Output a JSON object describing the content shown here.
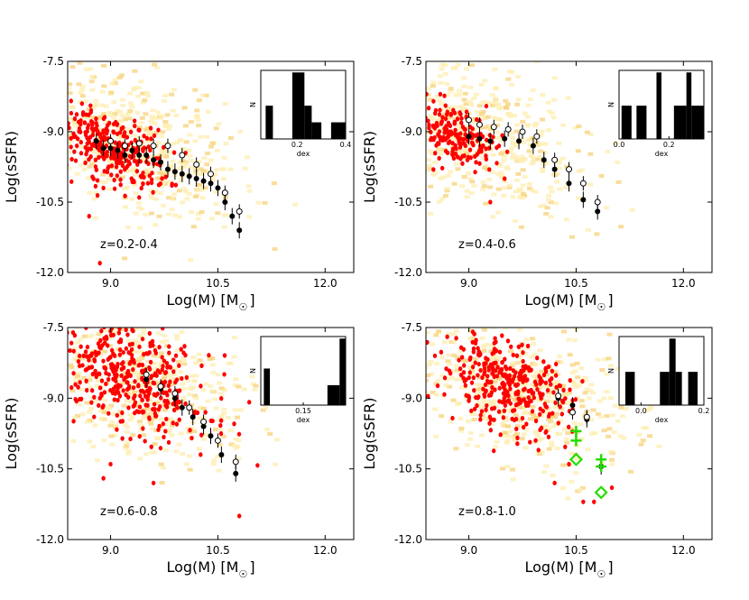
{
  "colors": {
    "density": "#fdeeb0",
    "density_dark": "#f7d27a",
    "points": "#ff0000",
    "binned": "#000000",
    "highlight": "#22dd00",
    "hist": "#000000"
  },
  "chart_data": [
    {
      "type": "scatter",
      "panel": "z=0.2-0.4",
      "annotation": "z=0.2-0.4",
      "xlabel": "Log(M) [M",
      "xlabel_sub": "☉",
      "xlabel_close": "]",
      "ylabel": "Log(sSFR)",
      "xlim": [
        8.4,
        12.4
      ],
      "ylim": [
        -12.0,
        -7.5
      ],
      "xticks": [
        9.0,
        10.5,
        12.0
      ],
      "xtick_labels": [
        "9.0",
        "10.5",
        "12.0"
      ],
      "yticks": [
        -7.5,
        -9.0,
        -10.5,
        -12.0
      ],
      "ytick_labels": [
        "-7.5",
        "-9.0",
        "-10.5",
        "-12.0"
      ],
      "density_center": {
        "x": 9.2,
        "y": -9.2
      },
      "red_clump": {
        "x": 9.0,
        "y": -9.35,
        "n": 300,
        "sx": 0.4,
        "sy": 0.35
      },
      "red_outliers": [
        [
          8.9,
          -10.2
        ],
        [
          8.7,
          -10.8
        ],
        [
          8.85,
          -11.8
        ],
        [
          9.4,
          -10.4
        ],
        [
          8.6,
          -8.4
        ]
      ],
      "binned_filled": {
        "x": [
          8.8,
          8.9,
          9.0,
          9.1,
          9.2,
          9.3,
          9.4,
          9.5,
          9.6,
          9.7,
          9.8,
          9.9,
          10.0,
          10.1,
          10.2,
          10.3,
          10.4,
          10.5,
          10.6,
          10.7,
          10.8
        ],
        "y": [
          -9.2,
          -9.35,
          -9.35,
          -9.4,
          -9.5,
          -9.4,
          -9.5,
          -9.5,
          -9.6,
          -9.65,
          -9.8,
          -9.85,
          -9.9,
          -9.95,
          -10.0,
          -10.05,
          -10.1,
          -10.2,
          -10.5,
          -10.8,
          -11.1
        ]
      },
      "binned_open": {
        "x": [
          9.0,
          9.2,
          9.4,
          9.6,
          9.8,
          10.0,
          10.2,
          10.4,
          10.6,
          10.8
        ],
        "y": [
          -9.2,
          -9.3,
          -9.25,
          -9.3,
          -9.3,
          -9.5,
          -9.7,
          -9.9,
          -10.3,
          -10.7
        ]
      },
      "inset": {
        "xlabel": "dex",
        "ylabel": "N",
        "xlim": [
          0.05,
          0.4
        ],
        "xtick_labels": [
          "0.2",
          "0.4"
        ],
        "xtick_values": [
          0.2,
          0.4
        ],
        "bins": [
          [
            0.07,
            0.1,
            0.5
          ],
          [
            0.18,
            0.23,
            1.0
          ],
          [
            0.23,
            0.26,
            0.5
          ],
          [
            0.26,
            0.3,
            0.25
          ],
          [
            0.34,
            0.4,
            0.25
          ]
        ]
      }
    },
    {
      "type": "scatter",
      "panel": "z=0.4-0.6",
      "annotation": "z=0.4-0.6",
      "xlabel": "Log(M) [M",
      "xlabel_sub": "☉",
      "xlabel_close": "]",
      "ylabel": "Log(sSFR)",
      "xlim": [
        8.4,
        12.4
      ],
      "ylim": [
        -12.0,
        -7.5
      ],
      "xticks": [
        9.0,
        10.5,
        12.0
      ],
      "xtick_labels": [
        "9.0",
        "10.5",
        "12.0"
      ],
      "yticks": [
        -7.5,
        -9.0,
        -10.5,
        -12.0
      ],
      "ytick_labels": [
        "-7.5",
        "-9.0",
        "-10.5",
        "-12.0"
      ],
      "density_center": {
        "x": 9.0,
        "y": -9.0
      },
      "red_clump": {
        "x": 8.8,
        "y": -9.05,
        "n": 180,
        "sx": 0.28,
        "sy": 0.3
      },
      "red_outliers": [
        [
          9.5,
          -10.0
        ],
        [
          8.6,
          -8.2
        ],
        [
          9.3,
          -10.5
        ],
        [
          10.2,
          -9.6
        ]
      ],
      "binned_filled": {
        "x": [
          9.0,
          9.15,
          9.3,
          9.5,
          9.7,
          9.9,
          10.05,
          10.2,
          10.4,
          10.6,
          10.8
        ],
        "y": [
          -9.1,
          -9.15,
          -9.2,
          -9.15,
          -9.2,
          -9.3,
          -9.6,
          -9.8,
          -10.1,
          -10.45,
          -10.7
        ]
      },
      "binned_open": {
        "x": [
          9.0,
          9.15,
          9.35,
          9.55,
          9.75,
          9.95,
          10.2,
          10.4,
          10.6,
          10.8
        ],
        "y": [
          -8.75,
          -8.85,
          -8.9,
          -8.95,
          -9.0,
          -9.1,
          -9.6,
          -9.8,
          -10.1,
          -10.5
        ]
      },
      "inset": {
        "xlabel": "dex",
        "ylabel": "N",
        "xlim": [
          0.0,
          0.34
        ],
        "xtick_labels": [
          "0.0",
          "0.2"
        ],
        "xtick_values": [
          0.0,
          0.2
        ],
        "bins": [
          [
            0.01,
            0.05,
            0.5
          ],
          [
            0.07,
            0.11,
            0.5
          ],
          [
            0.15,
            0.17,
            1.0
          ],
          [
            0.22,
            0.27,
            0.5
          ],
          [
            0.27,
            0.29,
            1.0
          ],
          [
            0.29,
            0.34,
            0.5
          ]
        ]
      }
    },
    {
      "type": "scatter",
      "panel": "z=0.6-0.8",
      "annotation": "z=0.6-0.8",
      "xlabel": "Log(M) [M",
      "xlabel_sub": "☉",
      "xlabel_close": "]",
      "ylabel": "Log(sSFR)",
      "xlim": [
        8.4,
        12.4
      ],
      "ylim": [
        -12.0,
        -7.5
      ],
      "xticks": [
        9.0,
        10.5,
        12.0
      ],
      "xtick_labels": [
        "9.0",
        "10.5",
        "12.0"
      ],
      "yticks": [
        -7.5,
        -9.0,
        -10.5,
        -12.0
      ],
      "ytick_labels": [
        "-7.5",
        "-9.0",
        "-10.5",
        "-12.0"
      ],
      "density_center": {
        "x": 9.3,
        "y": -8.6
      },
      "red_clump": {
        "x": 9.3,
        "y": -8.6,
        "n": 380,
        "sx": 0.55,
        "sy": 0.55
      },
      "red_outliers": [
        [
          9.0,
          -10.4
        ],
        [
          9.6,
          -10.8
        ],
        [
          10.8,
          -11.5
        ],
        [
          8.9,
          -10.7
        ]
      ],
      "binned_filled": {
        "x": [
          9.5,
          9.7,
          9.9,
          10.0,
          10.15,
          10.3,
          10.4,
          10.55,
          10.75
        ],
        "y": [
          -8.6,
          -8.8,
          -9.0,
          -9.2,
          -9.4,
          -9.6,
          -9.8,
          -10.2,
          -10.6
        ]
      },
      "binned_open": {
        "x": [
          9.5,
          9.7,
          9.9,
          10.1,
          10.3,
          10.5,
          10.75
        ],
        "y": [
          -8.5,
          -8.75,
          -8.9,
          -9.2,
          -9.5,
          -9.9,
          -10.35
        ]
      },
      "inset": {
        "xlabel": "dex",
        "ylabel": "N",
        "xlim": [
          0.08,
          0.22
        ],
        "xtick_labels": [
          "0.15"
        ],
        "xtick_values": [
          0.15
        ],
        "bins": [
          [
            0.085,
            0.095,
            0.55
          ],
          [
            0.19,
            0.21,
            0.3
          ],
          [
            0.21,
            0.22,
            1.0
          ]
        ]
      }
    },
    {
      "type": "scatter",
      "panel": "z=0.8-1.0",
      "annotation": "z=0.8-1.0",
      "xlabel": "Log(M) [M",
      "xlabel_sub": "☉",
      "xlabel_close": "]",
      "ylabel": "Log(sSFR)",
      "xlim": [
        8.4,
        12.4
      ],
      "ylim": [
        -12.0,
        -7.5
      ],
      "xticks": [
        9.0,
        10.5,
        12.0
      ],
      "xtick_labels": [
        "9.0",
        "10.5",
        "12.0"
      ],
      "yticks": [
        -7.5,
        -9.0,
        -10.5,
        -12.0
      ],
      "ytick_labels": [
        "-7.5",
        "-9.0",
        "-10.5",
        "-12.0"
      ],
      "density_center": {
        "x": 9.7,
        "y": -8.9
      },
      "red_clump": {
        "x": 9.5,
        "y": -8.7,
        "n": 330,
        "sx": 0.45,
        "sy": 0.45
      },
      "red_outliers": [
        [
          10.2,
          -10.8
        ],
        [
          10.6,
          -11.2
        ],
        [
          10.4,
          -10.4
        ],
        [
          10.75,
          -11.2
        ],
        [
          11.0,
          -10.9
        ]
      ],
      "binned_filled": {
        "x": [
          10.25,
          10.45,
          10.65,
          10.85
        ],
        "y": [
          -9.0,
          -9.15,
          -9.45,
          -10.45
        ]
      },
      "binned_open": {
        "x": [
          10.25,
          10.45,
          10.65
        ],
        "y": [
          -8.95,
          -9.3,
          -9.4
        ]
      },
      "green_crosses": [
        [
          10.5,
          -9.7
        ],
        [
          10.5,
          -9.9
        ],
        [
          10.85,
          -10.3
        ],
        [
          10.85,
          -10.45
        ]
      ],
      "green_diamonds": [
        [
          10.5,
          -10.3
        ],
        [
          10.85,
          -11.0
        ]
      ],
      "inset": {
        "xlabel": "dex",
        "ylabel": "N",
        "xlim": [
          -0.07,
          0.2
        ],
        "xtick_labels": [
          "0.0",
          "0.2"
        ],
        "xtick_values": [
          0.0,
          0.2
        ],
        "bins": [
          [
            -0.05,
            -0.02,
            0.5
          ],
          [
            0.06,
            0.09,
            0.5
          ],
          [
            0.09,
            0.11,
            1.0
          ],
          [
            0.11,
            0.13,
            0.5
          ],
          [
            0.15,
            0.18,
            0.5
          ]
        ]
      }
    }
  ]
}
